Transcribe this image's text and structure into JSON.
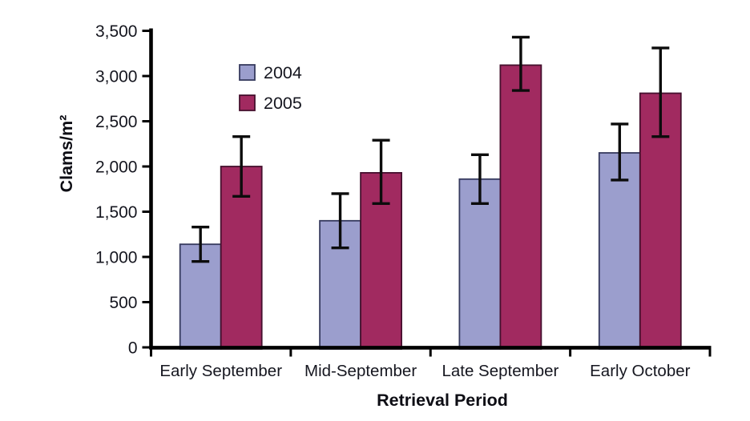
{
  "figure": {
    "background": "#ffffff"
  },
  "chart_data": {
    "type": "bar",
    "title": "",
    "ylabel": "Clams/m²",
    "xlabel": "Retrieval Period",
    "categories": [
      "Early September",
      "Mid-September",
      "Late September",
      "Early October"
    ],
    "series": [
      {
        "name": "2004",
        "color": "#9b9ecd",
        "border_color": "#363a5e",
        "values": [
          1140,
          1400,
          1860,
          2150
        ],
        "error_low": [
          950,
          1100,
          1590,
          1850
        ],
        "error_high": [
          1330,
          1700,
          2130,
          2470
        ]
      },
      {
        "name": "2005",
        "color": "#a12a60",
        "border_color": "#45102e",
        "values": [
          2000,
          1930,
          3120,
          2810
        ],
        "error_low": [
          1670,
          1590,
          2840,
          2330
        ],
        "error_high": [
          2330,
          2290,
          3430,
          3310
        ]
      }
    ],
    "ylim": [
      0,
      3500
    ],
    "ytick_step": 500,
    "ytick_labels": [
      "0",
      "500",
      "1,000",
      "1,500",
      "2,000",
      "2,500",
      "3,000",
      "3,500"
    ],
    "grid": false,
    "legend_position": "upper-left-inside",
    "axis_color": "#000000",
    "error_bar_color": "#0c0c0c",
    "tick_label_color": "#15161f",
    "title_color": "#0d0d14"
  }
}
